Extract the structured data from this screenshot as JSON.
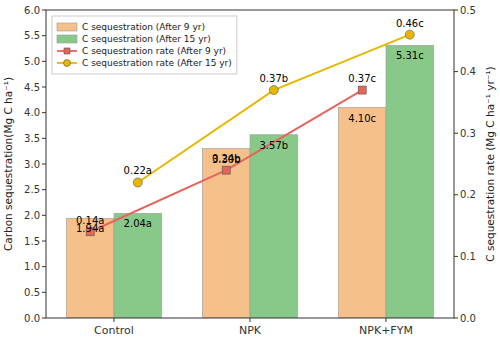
{
  "chart_data": {
    "type": "bar",
    "categories": [
      "Control",
      "NPK",
      "NPK+FYM"
    ],
    "series": [
      {
        "name": "C sequestration (After 9 yr)",
        "type": "bar",
        "color": "#F5C08A",
        "values": [
          1.94,
          3.3,
          4.1
        ],
        "value_labels": [
          "1.94a",
          "3.30b",
          "4.10c"
        ]
      },
      {
        "name": "C sequestration (After 15 yr)",
        "type": "bar",
        "color": "#88C98A",
        "values": [
          2.04,
          3.57,
          5.31
        ],
        "value_labels": [
          "2.04a",
          "3.57b",
          "5.31c"
        ]
      },
      {
        "name": "C sequestration rate (After 9 yr)",
        "type": "line",
        "axis": "y2",
        "color": "#E8645A",
        "marker": "square",
        "values": [
          0.14,
          0.24,
          0.37
        ],
        "value_labels": [
          "0.14a",
          "0.24b",
          "0.37c"
        ]
      },
      {
        "name": "C sequestration rate (After 15 yr)",
        "type": "line",
        "axis": "y2",
        "color": "#E8B800",
        "marker": "circle",
        "values": [
          0.22,
          0.37,
          0.46
        ],
        "value_labels": [
          "0.22a",
          "0.37b",
          "0.46c"
        ]
      }
    ],
    "ylabel": "Carbon sequestration(Mg C ha⁻¹)",
    "y2label": "C sequestration rate (Mg C ha⁻¹ yr⁻¹)",
    "ylim": [
      0,
      6.0
    ],
    "yticks": [
      {
        "value": 0,
        "label": "0.0"
      },
      0.5,
      {
        "value": 1.0,
        "label": "1.0"
      },
      1.5,
      {
        "value": 2.0,
        "label": "2.0"
      },
      2.5,
      {
        "value": 3.0,
        "label": "3.0"
      },
      3.5,
      {
        "value": 4.0,
        "label": "4.0"
      },
      4.5,
      {
        "value": 5.0,
        "label": "5.0"
      },
      5.5,
      {
        "value": 6.0,
        "label": "6.0"
      }
    ],
    "y2lim": [
      0,
      0.5
    ],
    "y2ticks": [
      {
        "value": 0.0,
        "label": "0.0"
      },
      0.1,
      0.2,
      0.3,
      0.4,
      0.5
    ],
    "legend": "upper left",
    "data_labels": true,
    "grid": false
  }
}
